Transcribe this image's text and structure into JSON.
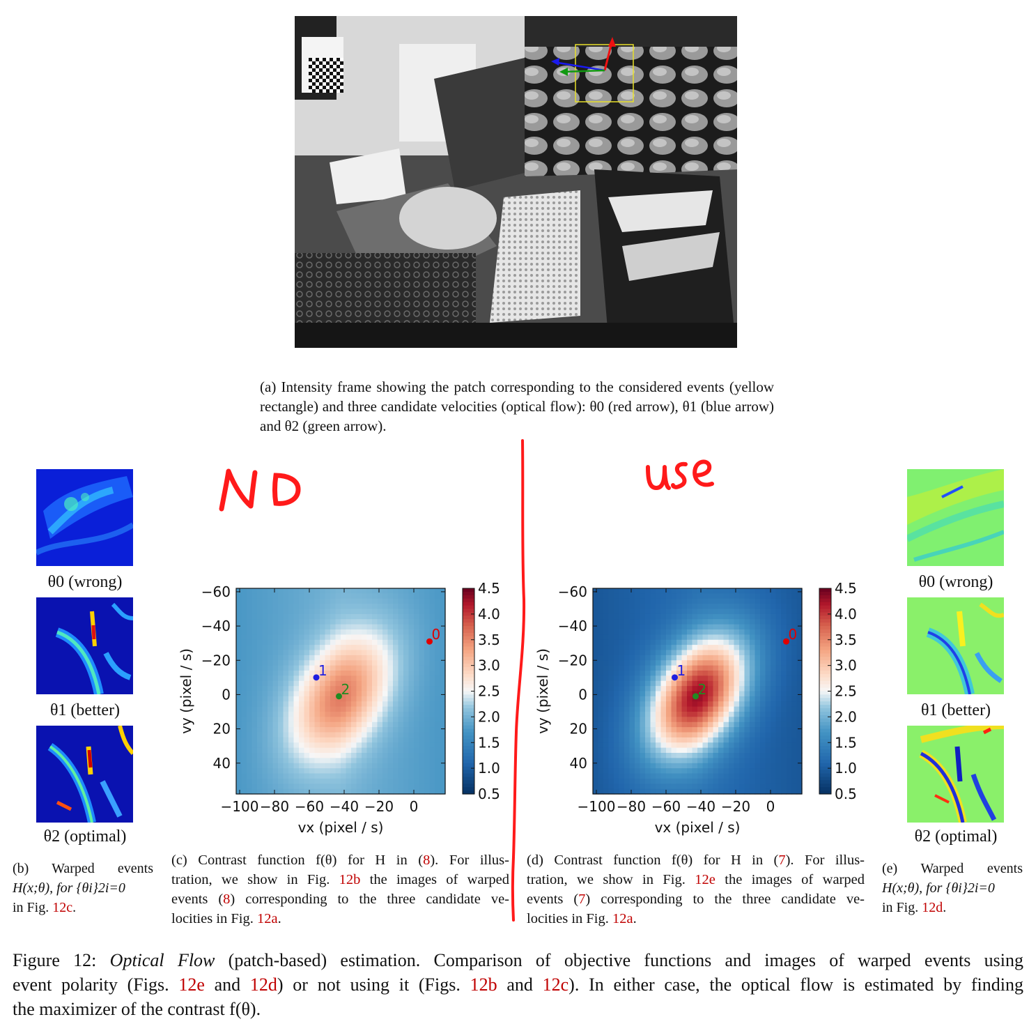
{
  "subfigures": {
    "a": {
      "caption_tag": "(a)",
      "caption": "Intensity frame showing the patch corresponding to the considered events (yellow rectangle) and three candidate velocities (optical flow): θ0 (red arrow), θ1 (blue arrow) and θ2 (green arrow)."
    },
    "b": {
      "labels": [
        "θ0 (wrong)",
        "θ1 (better)",
        "θ2 (optimal)"
      ],
      "caption_l1": "(b) Warped events",
      "caption_l2": "H(x;θ), for {θi}2i=0",
      "caption_l3_pre": "in Fig. ",
      "caption_l3_ref": "12c",
      "caption_l3_post": "."
    },
    "c": {
      "cap_l1_a": "(c) Contrast function f(θ) for H in (",
      "cap_l1_ref": "8",
      "cap_l1_b": "). For illus-",
      "cap_l2_a": "tration, we show in Fig. ",
      "cap_l2_ref": "12b",
      "cap_l2_b": " the images of warped",
      "cap_l3_a": "events (",
      "cap_l3_ref": "8",
      "cap_l3_b": ") corresponding to the three candidate ve-",
      "cap_l4_a": "locities in Fig. ",
      "cap_l4_ref": "12a",
      "cap_l4_b": "."
    },
    "d": {
      "cap_l1_a": "(d) Contrast function f(θ) for H in (",
      "cap_l1_ref": "7",
      "cap_l1_b": "). For illus-",
      "cap_l2_a": "tration, we show in Fig. ",
      "cap_l2_ref": "12e",
      "cap_l2_b": " the images of warped",
      "cap_l3_a": "events (",
      "cap_l3_ref": "7",
      "cap_l3_b": ") corresponding to the three candidate ve-",
      "cap_l4_a": "locities in Fig. ",
      "cap_l4_ref": "12a",
      "cap_l4_b": "."
    },
    "e": {
      "labels": [
        "θ0 (wrong)",
        "θ1 (better)",
        "θ2 (optimal)"
      ],
      "caption_l1": "(e) Warped events",
      "caption_l2": "H(x;θ), for {θi}2i=0",
      "caption_l3_pre": "in Fig. ",
      "caption_l3_ref": "12d",
      "caption_l3_post": "."
    }
  },
  "annotations": {
    "left_handwritten": "NO",
    "right_handwritten": "use"
  },
  "figure_caption": {
    "prefix": "Figure 12: ",
    "italic": "Optical Flow",
    "l1_rest": " (patch-based) estimation. Comparison of objective functions and images of warped events using",
    "l2_a": "event polarity (Figs. ",
    "l2_r1": "12e",
    "l2_b": " and ",
    "l2_r2": "12d",
    "l2_c": ") or not using it (Figs. ",
    "l2_r3": "12b",
    "l2_d": " and ",
    "l2_r4": "12c",
    "l2_e": "). In either case, the optical flow is estimated by finding",
    "l3": "the maximizer of the contrast f(θ)."
  },
  "colors": {
    "link": "#c00000",
    "handwriting": "#ff1a1a",
    "point0": "#e00000",
    "point1": "#1f1fe0",
    "point2": "#228b22"
  },
  "chart_data": [
    {
      "type": "heatmap",
      "id": "c",
      "xlabel": "vx (pixel / s)",
      "ylabel": "vy (pixel / s)",
      "xlim": [
        -102,
        18
      ],
      "ylim": [
        -62,
        58
      ],
      "y_inverted": true,
      "xticks": [
        -100,
        -80,
        -60,
        -40,
        -20,
        0
      ],
      "xtick_labels": [
        "−100",
        "−80",
        "−60",
        "−40",
        "−20",
        "0"
      ],
      "yticks": [
        -60,
        -40,
        -20,
        0,
        20,
        40
      ],
      "ytick_labels": [
        "−60",
        "−40",
        "−20",
        "0",
        "20",
        "40"
      ],
      "colorbar": {
        "min": 0.5,
        "max": 4.5,
        "ticks": [
          "4.5",
          "4.0",
          "3.5",
          "3.0",
          "2.5",
          "2.0",
          "1.5",
          "1.0",
          "0.5"
        ]
      },
      "peak": {
        "vx": -42,
        "vy": 1,
        "value": 3.6
      },
      "background_value": 2.0,
      "points": [
        {
          "label": "0",
          "vx": 9,
          "vy": -31
        },
        {
          "label": "1",
          "vx": -56,
          "vy": -10
        },
        {
          "label": "2",
          "vx": -43,
          "vy": 1
        }
      ]
    },
    {
      "type": "heatmap",
      "id": "d",
      "xlabel": "vx (pixel / s)",
      "ylabel": "vy (pixel / s)",
      "xlim": [
        -102,
        18
      ],
      "ylim": [
        -62,
        58
      ],
      "y_inverted": true,
      "xticks": [
        -100,
        -80,
        -60,
        -40,
        -20,
        0
      ],
      "xtick_labels": [
        "−100",
        "−80",
        "−60",
        "−40",
        "−20",
        "0"
      ],
      "yticks": [
        -60,
        -40,
        -20,
        0,
        20,
        40
      ],
      "ytick_labels": [
        "−60",
        "−40",
        "−20",
        "0",
        "20",
        "40"
      ],
      "colorbar": {
        "min": 0.5,
        "max": 4.5,
        "ticks": [
          "4.5",
          "4.0",
          "3.5",
          "3.0",
          "2.5",
          "2.0",
          "1.5",
          "1.0",
          "0.5"
        ]
      },
      "peak": {
        "vx": -42,
        "vy": 1,
        "value": 4.3
      },
      "background_value": 1.2,
      "points": [
        {
          "label": "0",
          "vx": 9,
          "vy": -31
        },
        {
          "label": "1",
          "vx": -55,
          "vy": -10
        },
        {
          "label": "2",
          "vx": -43,
          "vy": 1
        }
      ]
    }
  ]
}
